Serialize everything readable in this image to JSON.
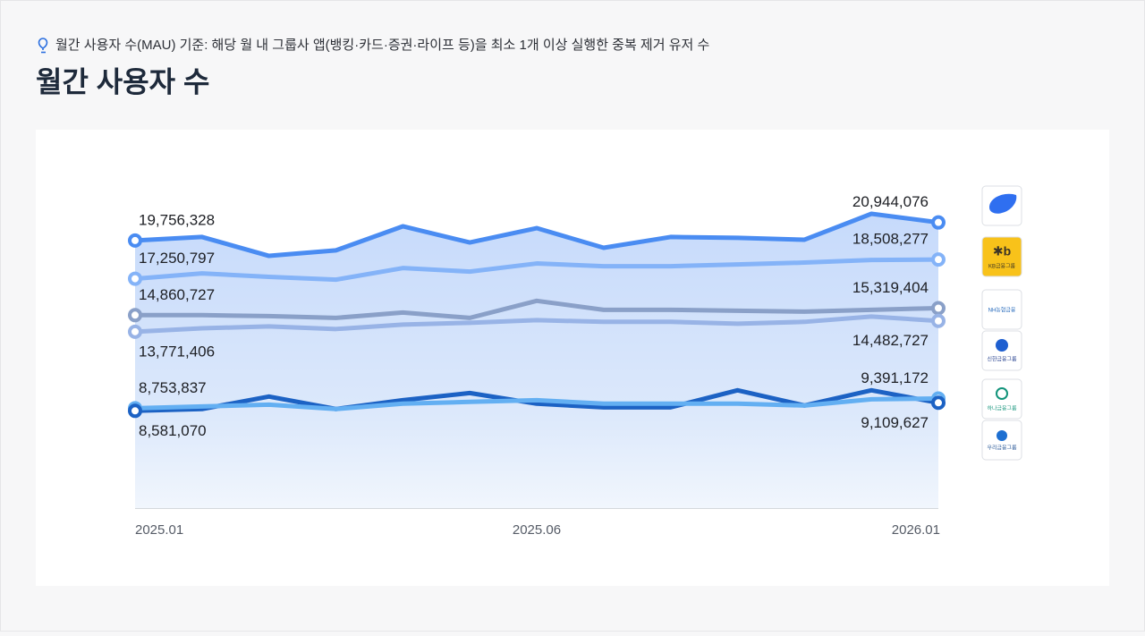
{
  "note": "월간 사용자 수(MAU) 기준: 해당 월 내 그룹사 앱(뱅킹·카드·증권·라이프 등)을 최소 1개 이상 실행한 중복 제거 유저 수",
  "chart_data": {
    "type": "line",
    "title": "월간 사용자 수",
    "categories": [
      "2025.01",
      null,
      null,
      null,
      null,
      null,
      "2025.06",
      null,
      null,
      null,
      null,
      null,
      "2026.01"
    ],
    "ylim": [
      2200000,
      23800000
    ],
    "area": true,
    "series": [
      {
        "color": "#4a8cf2",
        "values": [
          19756328,
          19990000,
          18750000,
          19110000,
          20690000,
          19630000,
          20570000,
          19280000,
          19990000,
          19930000,
          19810000,
          21510000,
          20944076
        ],
        "value_labels": [
          "19,756,328",
          null,
          null,
          null,
          null,
          null,
          null,
          null,
          null,
          null,
          null,
          null,
          "20,944,076"
        ]
      },
      {
        "name": "KB금융그룹",
        "color": "#84b3f8",
        "values": [
          17250797,
          17600000,
          17370000,
          17190000,
          17950000,
          17720000,
          18250000,
          18070000,
          18070000,
          18190000,
          18310000,
          18480000,
          18508277
        ],
        "value_labels": [
          "17,250,797",
          null,
          null,
          null,
          null,
          null,
          null,
          null,
          null,
          null,
          null,
          null,
          "18,508,277"
        ]
      },
      {
        "name": "NH농협금융",
        "color": "#8aa0c8",
        "values": [
          14860727,
          14860000,
          14800000,
          14680000,
          15030000,
          14680000,
          15800000,
          15210000,
          15210000,
          15150000,
          15090000,
          15210000,
          15319404
        ],
        "value_labels": [
          "14,860,727",
          null,
          null,
          null,
          null,
          null,
          null,
          null,
          null,
          null,
          null,
          null,
          "15,319,404"
        ]
      },
      {
        "name": "신한금융그룹",
        "color": "#98b3e6",
        "values": [
          13771406,
          14000000,
          14120000,
          13950000,
          14240000,
          14360000,
          14530000,
          14420000,
          14420000,
          14300000,
          14420000,
          14770000,
          14482727
        ],
        "value_labels": [
          "13,771,406",
          null,
          null,
          null,
          null,
          null,
          null,
          null,
          null,
          null,
          null,
          null,
          "14,482,727"
        ]
      },
      {
        "name": "하나금융그룹",
        "color": "#63aff2",
        "values": [
          8753837,
          8870000,
          8990000,
          8700000,
          9050000,
          9170000,
          9280000,
          9050000,
          9050000,
          9050000,
          8930000,
          9340000,
          9391172
        ],
        "value_labels": [
          "8,753,837",
          null,
          null,
          null,
          null,
          null,
          null,
          null,
          null,
          null,
          null,
          null,
          "9,391,172"
        ]
      },
      {
        "name": "우리금융그룹",
        "color": "#1c62c4",
        "values": [
          8581070,
          8700000,
          9520000,
          8700000,
          9280000,
          9750000,
          9050000,
          8810000,
          8810000,
          9930000,
          8930000,
          9930000,
          9109627
        ],
        "value_labels": [
          "8,581,070",
          null,
          null,
          null,
          null,
          null,
          null,
          null,
          null,
          null,
          null,
          null,
          "9,109,627"
        ]
      }
    ]
  }
}
